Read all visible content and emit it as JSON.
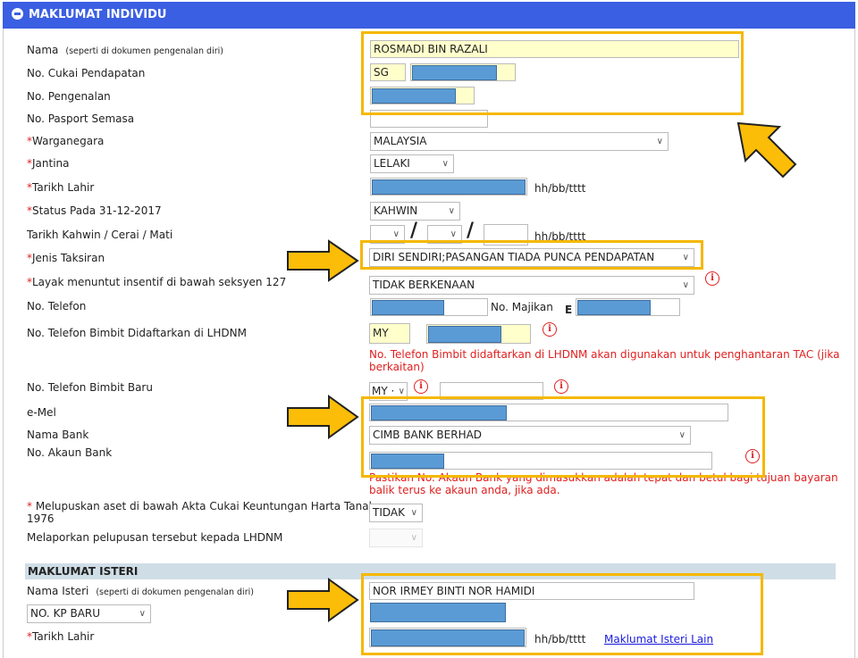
{
  "header": {
    "title": "MAKLUMAT INDIVIDU",
    "icon": "minus-circle-icon"
  },
  "labels": {
    "nama": "Nama",
    "nama_hint": "(seperti di dokumen pengenalan diri)",
    "cukai": "No. Cukai Pendapatan",
    "pengenalan": "No. Pengenalan",
    "pasport": "No. Pasport Semasa",
    "warganegara": "Warganegara",
    "jantina": "Jantina",
    "tarikh_lahir": "Tarikh Lahir",
    "status": "Status Pada 31-12-2017",
    "tarikh_kahwin": "Tarikh Kahwin / Cerai / Mati",
    "jenis": "Jenis Taksiran",
    "layak": "Layak menuntut insentif di bawah seksyen 127",
    "telefon": "No. Telefon",
    "majikan": "No. Majikan",
    "bimbit": "No. Telefon Bimbit Didaftarkan di LHDNM",
    "bimbit_baru": "No. Telefon Bimbit Baru",
    "emel": "e-Mel",
    "bank": "Nama Bank",
    "akaun": "No. Akaun Bank",
    "melupuskan": "Melupuskan aset di bawah Akta Cukai Keuntungan Harta Tanah",
    "melupuskan2": "1976",
    "melaporkan": "Melaporkan pelupusan tersebut kepada LHDNM",
    "required": "*",
    "date_format": "hh/bb/tttt",
    "slash": "/"
  },
  "values": {
    "nama": "ROSMADI BIN RAZALI",
    "cukai_prefix": "SG",
    "warganegara": "MALAYSIA",
    "jantina": "LELAKI",
    "status": "KAHWIN",
    "jenis": "DIRI SENDIRI;PASANGAN TIADA PUNCA PENDAPATAN",
    "layak": "TIDAK BERKENAAN",
    "majikan_prefix": "E",
    "bimbit_prefix": "MY",
    "bimbit_baru_prefix": "MY ·",
    "bank": "CIMB BANK BERHAD",
    "melupuskan": "TIDAK"
  },
  "notes": {
    "tac": "No. Telefon Bimbit didaftarkan di LHDNM akan digunakan untuk penghantaran TAC (jika berkaitan)",
    "akaun": "Pastikan No. Akaun Bank yang dimasukkan adalah tepat dan betul bagi tujuan bayaran balik terus ke akaun anda, jika ada."
  },
  "isteri": {
    "title": "MAKLUMAT ISTERI",
    "nama_label": "Nama Isteri",
    "nama_hint": "(seperti di dokumen pengenalan diri)",
    "nama": "NOR IRMEY BINTI NOR HAMIDI",
    "id_type": "NO. KP BARU",
    "tarikh_lahir": "Tarikh Lahir",
    "link": "Maklumat Isteri Lain"
  },
  "colors": {
    "header": "#3b5fe2",
    "highlight": "#f5b800",
    "redaction": "#5b9bd5",
    "required": "#e02020"
  }
}
